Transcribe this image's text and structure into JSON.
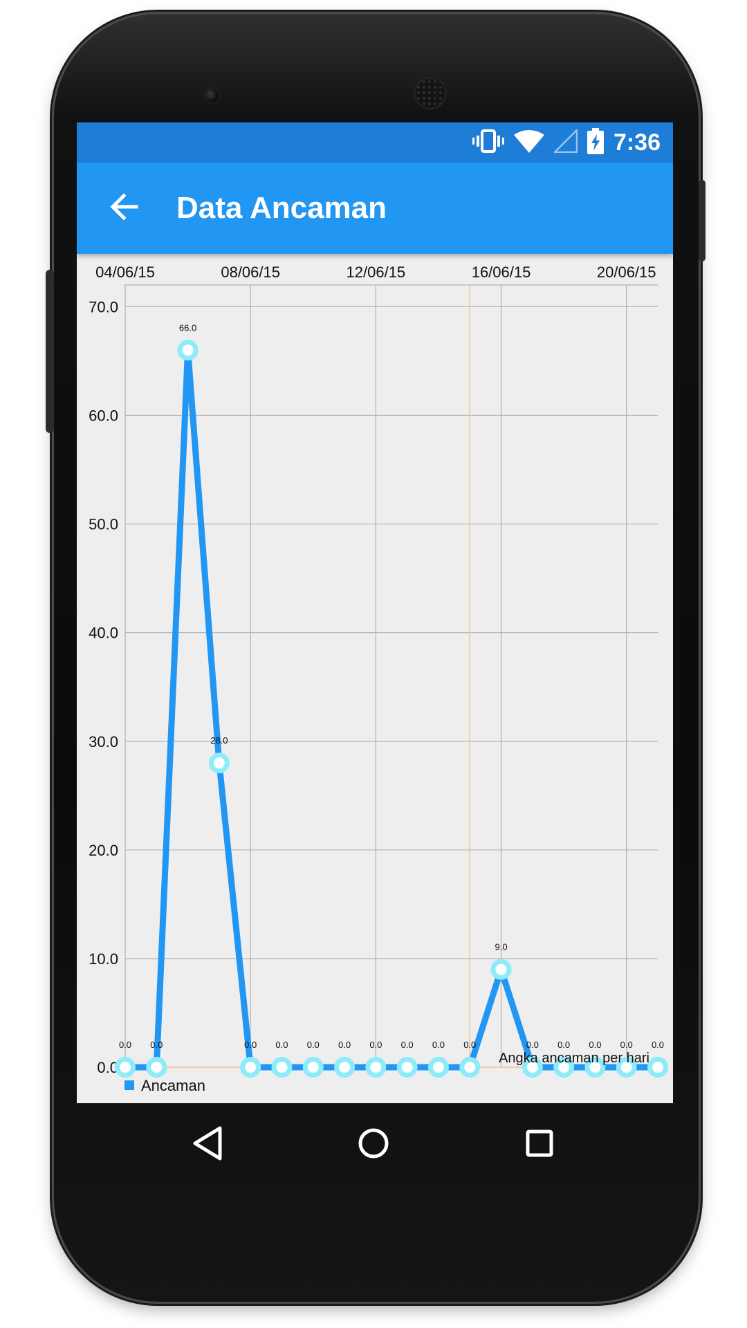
{
  "status_bar": {
    "time": "7:36",
    "icons": [
      "vibrate-icon",
      "wifi-icon",
      "cell-signal-icon",
      "battery-charging-icon"
    ]
  },
  "app_bar": {
    "title": "Data Ancaman",
    "back_icon": "arrow-back-icon"
  },
  "nav_bar": {
    "icons": [
      "back-triangle-icon",
      "home-circle-icon",
      "recents-square-icon"
    ]
  },
  "colors": {
    "status_bar": "#1e7dd6",
    "app_bar": "#2196f3",
    "series": "#2196f3",
    "marker": "#8eebfa",
    "highlight": "#f7c08a",
    "chart_bg": "#eeeeee",
    "grid": "#b0b0b0"
  },
  "chart_data": {
    "type": "line",
    "title": "",
    "description": "Angka ancaman per hari",
    "xlabel": "",
    "ylabel": "",
    "x_tick_labels": [
      "04/06/15",
      "08/06/15",
      "12/06/15",
      "16/06/15",
      "20/06/15"
    ],
    "x_ticks": [
      0,
      4,
      8,
      12,
      16
    ],
    "xlim": [
      0,
      17
    ],
    "ylim": [
      0,
      72
    ],
    "y_ticks": [
      "0.0",
      "10.0",
      "20.0",
      "30.0",
      "40.0",
      "50.0",
      "60.0",
      "70.0"
    ],
    "highlight_x": 11,
    "grid": true,
    "legend_position": "bottom-left",
    "series": [
      {
        "name": "Ancaman",
        "x": [
          0,
          1,
          2,
          3,
          4,
          5,
          6,
          7,
          8,
          9,
          10,
          11,
          12,
          13,
          14,
          15,
          16,
          17
        ],
        "values": [
          0.0,
          0.0,
          66.0,
          28.0,
          0.0,
          0.0,
          0.0,
          0.0,
          0.0,
          0.0,
          0.0,
          0.0,
          9.0,
          0.0,
          0.0,
          0.0,
          0.0,
          0.0
        ],
        "point_labels": [
          "0.0",
          "0.0",
          "66.0",
          "28.0",
          "0.0",
          "0.0",
          "0.0",
          "0.0",
          "0.0",
          "0.0",
          "0.0",
          "0.0",
          "9.0",
          "0.0",
          "0.0",
          "0.0",
          "0.0",
          "0.0"
        ]
      }
    ]
  }
}
